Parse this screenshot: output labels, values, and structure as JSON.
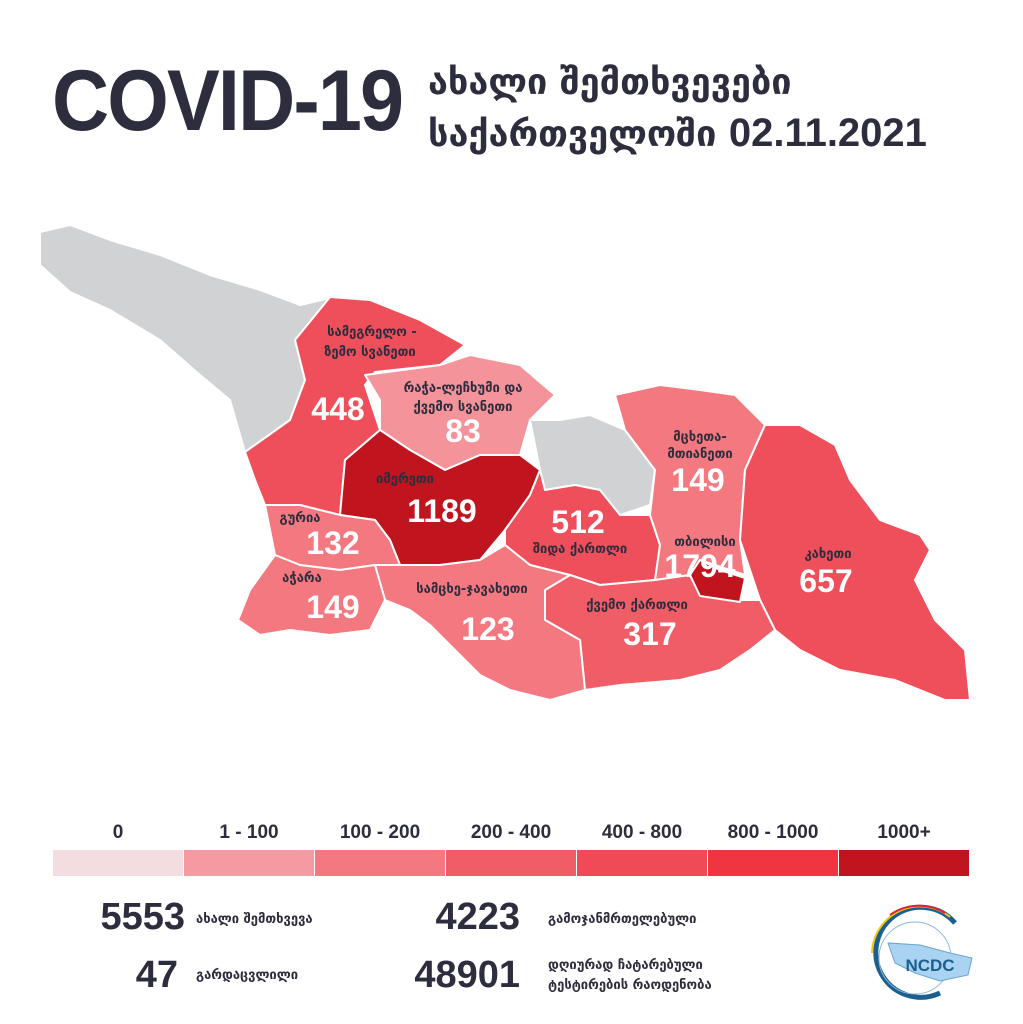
{
  "header": {
    "title": "COVID-19",
    "subtitle_line1": "ახალი შემთხვევები",
    "subtitle_line2": "საქართველოში",
    "date": "02.11.2021"
  },
  "regions": [
    {
      "name": "სამეგრელო -",
      "name2": "ზემო სვანეთი",
      "value": "448",
      "color": "#ef4f5a"
    },
    {
      "name": "რაჭა-ლეჩხუმი და",
      "name2": "ქვემო სვანეთი",
      "value": "83",
      "color": "#f5939b"
    },
    {
      "name": "იმერეთი",
      "value": "1189",
      "color": "#c0141e"
    },
    {
      "name": "გურია",
      "value": "132",
      "color": "#f47880"
    },
    {
      "name": "აჭარა",
      "value": "149",
      "color": "#f47880"
    },
    {
      "name": "სამცხე-ჯავახეთი",
      "value": "123",
      "color": "#f47880"
    },
    {
      "name": "შიდა ქართლი",
      "value": "512",
      "color": "#ef4f5a"
    },
    {
      "name": "მცხეთა-",
      "name2": "მთიანეთი",
      "value": "149",
      "color": "#f47880"
    },
    {
      "name": "თბილისი",
      "value": "1794",
      "color": "#c0141e"
    },
    {
      "name": "კახეთი",
      "value": "657",
      "color": "#ef4f5a"
    },
    {
      "name": "ქვემო ქართლი",
      "value": "317",
      "color": "#f05d67"
    }
  ],
  "no_data_color": "#d1d2d4",
  "legend": [
    {
      "label": "0",
      "color": "#f3dde1"
    },
    {
      "label": "1 - 100",
      "color": "#f59aa0"
    },
    {
      "label": "100 - 200",
      "color": "#f47880"
    },
    {
      "label": "200 - 400",
      "color": "#f05d67"
    },
    {
      "label": "400 - 800",
      "color": "#ef4a55"
    },
    {
      "label": "800 - 1000",
      "color": "#ee3540"
    },
    {
      "label": "1000+",
      "color": "#c0141e"
    }
  ],
  "stats": {
    "new_cases": {
      "value": "5553",
      "label": "ახალი შემთხვევა"
    },
    "recovered": {
      "value": "4223",
      "label": "გამოჯანმრთელებული"
    },
    "deaths": {
      "value": "47",
      "label": "გარდაცვლილი"
    },
    "tests": {
      "value": "48901",
      "label1": "დღიურად ჩატარებული",
      "label2": "ტესტირების რაოდენობა"
    }
  },
  "logo": {
    "text": "NCDC"
  }
}
